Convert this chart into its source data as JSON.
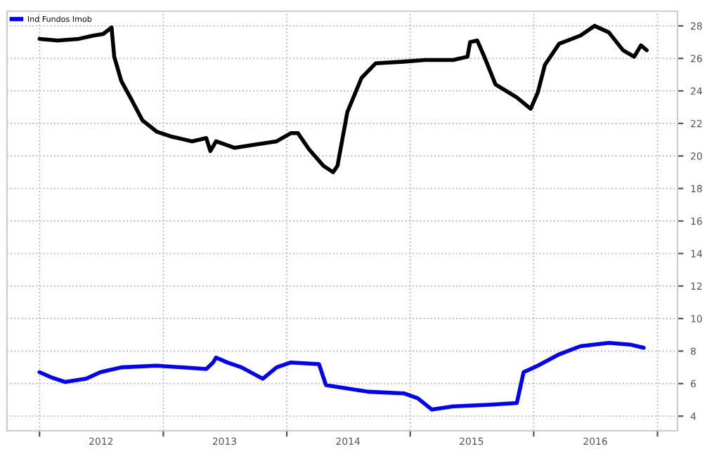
{
  "chart_data": {
    "type": "line",
    "series": [
      {
        "color": "#000000",
        "x": [
          "2012-01-01",
          "2012-02-24",
          "2012-04-26",
          "2012-06-08",
          "2012-07-07",
          "2012-08-01",
          "2012-08-09",
          "2012-08-30",
          "2012-09-28",
          "2012-10-31",
          "2012-12-12",
          "2013-01-23",
          "2013-03-27",
          "2013-05-08",
          "2013-05-20",
          "2013-06-06",
          "2013-07-30",
          "2013-10-01",
          "2013-12-02",
          "2014-01-13",
          "2014-02-03",
          "2014-03-08",
          "2014-04-19",
          "2014-05-18",
          "2014-05-31",
          "2014-06-29",
          "2014-08-10",
          "2014-09-21",
          "2014-12-13",
          "2015-02-14",
          "2015-05-08",
          "2015-06-19",
          "2015-06-27",
          "2015-07-18",
          "2015-08-08",
          "2015-09-10",
          "2015-11-12",
          "2015-12-23",
          "2016-01-13",
          "2016-02-03",
          "2016-03-16",
          "2016-05-18",
          "2016-06-29",
          "2016-08-10",
          "2016-09-21",
          "2016-10-24",
          "2016-11-13",
          "2016-11-30"
        ],
        "values": [
          27.2,
          27.1,
          27.2,
          27.4,
          27.5,
          27.9,
          26.1,
          24.6,
          23.5,
          22.2,
          21.5,
          21.2,
          20.9,
          21.1,
          20.3,
          20.9,
          20.5,
          20.7,
          20.9,
          21.4,
          21.4,
          20.4,
          19.4,
          19.0,
          19.4,
          22.7,
          24.8,
          25.7,
          25.8,
          25.9,
          25.9,
          26.1,
          27.0,
          27.1,
          26.1,
          24.4,
          23.6,
          22.9,
          23.9,
          25.6,
          26.9,
          27.4,
          28.0,
          27.6,
          26.5,
          26.1,
          26.8,
          26.5
        ]
      },
      {
        "name": "Ind Fundos Imob",
        "color": "#0000ff",
        "x": [
          "2012-01-01",
          "2012-02-03",
          "2012-03-16",
          "2012-05-18",
          "2012-06-29",
          "2012-08-30",
          "2012-12-12",
          "2013-05-08",
          "2013-05-28",
          "2013-06-06",
          "2013-07-09",
          "2013-08-20",
          "2013-10-22",
          "2013-12-02",
          "2014-01-13",
          "2014-04-06",
          "2014-04-27",
          "2014-08-30",
          "2014-12-13",
          "2015-01-23",
          "2015-03-06",
          "2015-05-08",
          "2015-08-20",
          "2015-11-12",
          "2015-12-02",
          "2016-01-13",
          "2016-03-16",
          "2016-05-18",
          "2016-08-10",
          "2016-10-12",
          "2016-11-21"
        ],
        "values": [
          6.7,
          6.4,
          6.1,
          6.3,
          6.7,
          7.0,
          7.1,
          6.9,
          7.3,
          7.6,
          7.3,
          7.0,
          6.3,
          7.0,
          7.3,
          7.2,
          5.9,
          5.5,
          5.4,
          5.1,
          4.4,
          4.6,
          4.7,
          4.8,
          6.7,
          7.1,
          7.8,
          8.3,
          8.5,
          8.4,
          8.2
        ]
      }
    ],
    "xlim": [
      "2011-09-27",
      "2017-03-01"
    ],
    "xticks": [
      {
        "value": "2012-01-01",
        "label": null
      },
      {
        "value": "2012-07-01",
        "label": "2012"
      },
      {
        "value": "2013-01-01",
        "label": null
      },
      {
        "value": "2013-07-01",
        "label": "2013"
      },
      {
        "value": "2014-01-01",
        "label": null
      },
      {
        "value": "2014-07-01",
        "label": "2014"
      },
      {
        "value": "2015-01-01",
        "label": null
      },
      {
        "value": "2015-07-01",
        "label": "2015"
      },
      {
        "value": "2016-01-01",
        "label": null
      },
      {
        "value": "2016-07-01",
        "label": "2016"
      },
      {
        "value": "2017-01-01",
        "label": null
      }
    ],
    "ylim": [
      3.1,
      28.9
    ],
    "yticks": [
      4,
      6,
      8,
      10,
      12,
      14,
      16,
      18,
      20,
      22,
      24,
      26,
      28
    ],
    "grid": true,
    "legend": "top left",
    "line_style": "solid",
    "marker": "none"
  }
}
